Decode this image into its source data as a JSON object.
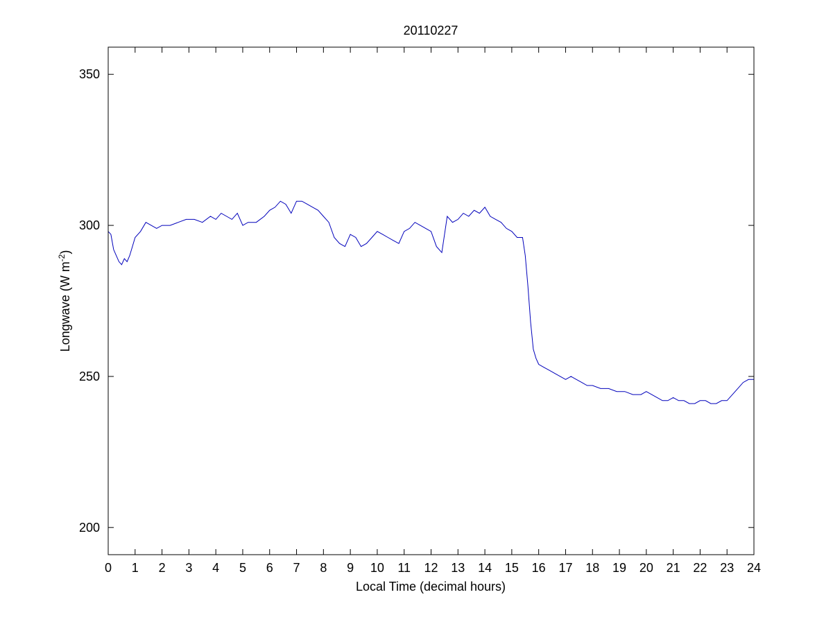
{
  "chart_data": {
    "type": "line",
    "title": "20110227",
    "xlabel": "Local Time (decimal hours)",
    "ylabel_parts": {
      "main": "Longwave (W m",
      "sup": "-2",
      "close": ")"
    },
    "xlim": [
      0,
      24
    ],
    "ylim": [
      191,
      359
    ],
    "xticks": [
      0,
      1,
      2,
      3,
      4,
      5,
      6,
      7,
      8,
      9,
      10,
      11,
      12,
      13,
      14,
      15,
      16,
      17,
      18,
      19,
      20,
      21,
      22,
      23,
      24
    ],
    "yticks": [
      200,
      250,
      300,
      350
    ],
    "grid": false,
    "line_color": "#0000bb",
    "series": [
      {
        "x": [
          0,
          0.1,
          0.2,
          0.3,
          0.4,
          0.5,
          0.6,
          0.7,
          0.8,
          0.9,
          1.0,
          1.2,
          1.4,
          1.6,
          1.8,
          2.0,
          2.3,
          2.6,
          2.9,
          3.2,
          3.5,
          3.8,
          4.0,
          4.2,
          4.4,
          4.6,
          4.8,
          5.0,
          5.2,
          5.5,
          5.8,
          6.0,
          6.2,
          6.4,
          6.6,
          6.8,
          7.0,
          7.2,
          7.4,
          7.6,
          7.8,
          8.0,
          8.2,
          8.4,
          8.6,
          8.8,
          9.0,
          9.2,
          9.4,
          9.6,
          9.8,
          10.0,
          10.2,
          10.4,
          10.6,
          10.8,
          11.0,
          11.2,
          11.4,
          11.6,
          11.8,
          12.0,
          12.2,
          12.4,
          12.6,
          12.8,
          13.0,
          13.2,
          13.4,
          13.6,
          13.8,
          14.0,
          14.2,
          14.4,
          14.6,
          14.8,
          15.0,
          15.2,
          15.4,
          15.5,
          15.6,
          15.7,
          15.8,
          15.9,
          16.0,
          16.2,
          16.4,
          16.6,
          16.8,
          17.0,
          17.2,
          17.4,
          17.6,
          17.8,
          18.0,
          18.3,
          18.6,
          18.9,
          19.2,
          19.5,
          19.8,
          20.0,
          20.2,
          20.4,
          20.6,
          20.8,
          21.0,
          21.2,
          21.4,
          21.6,
          21.8,
          22.0,
          22.2,
          22.4,
          22.6,
          22.8,
          23.0,
          23.2,
          23.4,
          23.6,
          23.8,
          24.0
        ],
        "y": [
          298,
          297,
          292,
          290,
          288,
          287,
          289,
          288,
          290,
          293,
          296,
          298,
          301,
          300,
          299,
          300,
          300,
          301,
          302,
          302,
          301,
          303,
          302,
          304,
          303,
          302,
          304,
          300,
          301,
          301,
          303,
          305,
          306,
          308,
          307,
          304,
          308,
          308,
          307,
          306,
          305,
          303,
          301,
          296,
          294,
          293,
          297,
          296,
          293,
          294,
          296,
          298,
          297,
          296,
          295,
          294,
          298,
          299,
          301,
          300,
          299,
          298,
          293,
          291,
          303,
          301,
          302,
          304,
          303,
          305,
          304,
          306,
          303,
          302,
          301,
          299,
          298,
          296,
          296,
          290,
          280,
          268,
          259,
          256,
          254,
          253,
          252,
          251,
          250,
          249,
          250,
          249,
          248,
          247,
          247,
          246,
          246,
          245,
          245,
          244,
          244,
          245,
          244,
          243,
          242,
          242,
          243,
          242,
          242,
          241,
          241,
          242,
          242,
          241,
          241,
          242,
          242,
          244,
          246,
          248,
          249,
          249
        ]
      }
    ]
  }
}
